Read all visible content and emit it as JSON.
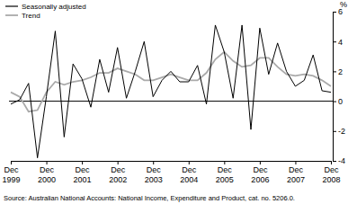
{
  "chart_data": {
    "type": "line",
    "y_label": "%",
    "source": "Source: Australian National Accounts: National Income, Expenditure and Product, cat. no. 5206.0.",
    "categories": [
      "Dec 1999",
      null,
      null,
      null,
      "Dec 2000",
      null,
      null,
      null,
      "Dec 2001",
      null,
      null,
      null,
      "Dec 2002",
      null,
      null,
      null,
      "Dec 2003",
      null,
      null,
      null,
      "Dec 2004",
      null,
      null,
      null,
      "Dec 2005",
      null,
      null,
      null,
      "Dec 2006",
      null,
      null,
      null,
      "Dec 2007",
      null,
      null,
      null,
      "Dec 2008"
    ],
    "series": [
      {
        "name": "Seasonally adjusted",
        "color": "#000000",
        "values": [
          -0.2,
          0.1,
          1.2,
          -3.8,
          0.3,
          4.7,
          -2.4,
          2.5,
          1.5,
          -0.4,
          2.8,
          0.6,
          3.6,
          0.2,
          2.0,
          4.0,
          0.3,
          1.4,
          2.0,
          1.3,
          1.3,
          2.4,
          -0.2,
          5.1,
          3.3,
          0.2,
          5.1,
          -1.9,
          4.9,
          1.8,
          3.9,
          2.0,
          1.0,
          1.4,
          3.1,
          0.7,
          0.6
        ]
      },
      {
        "name": "Trend",
        "color": "#aaaaaa",
        "values": [
          0.6,
          0.3,
          -0.7,
          -0.6,
          0.6,
          1.3,
          1.1,
          1.3,
          1.4,
          1.6,
          1.9,
          1.9,
          2.2,
          2.0,
          1.8,
          1.4,
          1.4,
          1.6,
          1.8,
          1.6,
          1.4,
          1.4,
          1.9,
          2.8,
          3.3,
          2.7,
          2.3,
          2.4,
          2.9,
          2.9,
          2.3,
          1.8,
          1.7,
          1.8,
          1.7,
          1.4,
          1.0
        ]
      }
    ],
    "ylim": [
      -4,
      6
    ],
    "yticks": [
      -4,
      -2,
      0,
      2,
      4,
      6
    ],
    "legend": "top-left",
    "grid": false
  }
}
